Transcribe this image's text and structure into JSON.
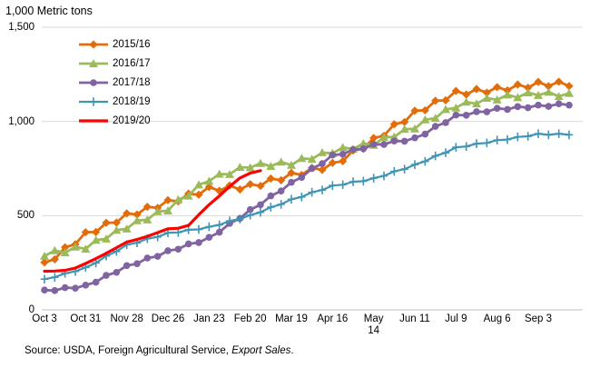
{
  "chart_data": {
    "type": "line",
    "title": "1,000 Metric tons",
    "xlabel": "",
    "ylabel": "1,000 Metric tons",
    "ylim": [
      0,
      1500
    ],
    "grid": "horizontal-only",
    "legend_position": "top-left-inside",
    "y_ticks": [
      {
        "label": "0",
        "value": 0
      },
      {
        "label": "500",
        "value": 500
      },
      {
        "label": "1,000",
        "value": 1000
      },
      {
        "label": "1,500",
        "value": 1500
      }
    ],
    "x_ticks": [
      {
        "week": 0,
        "lines": [
          "Oct 3"
        ]
      },
      {
        "week": 4,
        "lines": [
          "Oct 31"
        ]
      },
      {
        "week": 8,
        "lines": [
          "Nov 28"
        ]
      },
      {
        "week": 12,
        "lines": [
          "Dec 26"
        ]
      },
      {
        "week": 16,
        "lines": [
          "Jan 23"
        ]
      },
      {
        "week": 20,
        "lines": [
          "Feb 20"
        ]
      },
      {
        "week": 24,
        "lines": [
          "Mar 19"
        ]
      },
      {
        "week": 28,
        "lines": [
          "Apr 16"
        ]
      },
      {
        "week": 32,
        "lines": [
          "May",
          "14"
        ]
      },
      {
        "week": 36,
        "lines": [
          "Jun 11"
        ]
      },
      {
        "week": 40,
        "lines": [
          "Jul 9"
        ]
      },
      {
        "week": 44,
        "lines": [
          "Aug 6"
        ]
      },
      {
        "week": 48,
        "lines": [
          "Sep 3"
        ]
      }
    ],
    "weeks_total": 52,
    "series": [
      {
        "name": "2015/16",
        "color": "#E36C0A",
        "marker": "diamond",
        "values": [
          252,
          268,
          332,
          348,
          412,
          413,
          462,
          463,
          512,
          506,
          547,
          541,
          582,
          576,
          617,
          611,
          652,
          632,
          660,
          639,
          667,
          658,
          697,
          688,
          727,
          716,
          754,
          743,
          780,
          789,
          846,
          855,
          912,
          924,
          985,
          997,
          1057,
          1059,
          1110,
          1112,
          1162,
          1143,
          1172,
          1153,
          1182,
          1165,
          1196,
          1179,
          1210,
          1187,
          1211,
          1188
        ]
      },
      {
        "name": "2016/17",
        "color": "#9BBB59",
        "marker": "triangle",
        "values": [
          285,
          315,
          304,
          334,
          323,
          370,
          377,
          423,
          430,
          474,
          478,
          522,
          526,
          585,
          605,
          664,
          683,
          721,
          719,
          757,
          755,
          778,
          762,
          785,
          768,
          804,
          800,
          835,
          831,
          862,
          853,
          883,
          874,
          916,
          918,
          959,
          961,
          1009,
          1017,
          1064,
          1072,
          1103,
          1094,
          1124,
          1115,
          1141,
          1127,
          1153,
          1139,
          1156,
          1133,
          1150
        ]
      },
      {
        "name": "2017/18",
        "color": "#8064A2",
        "marker": "circle",
        "values": [
          105,
          102,
          118,
          115,
          131,
          147,
          183,
          199,
          235,
          245,
          275,
          284,
          314,
          322,
          350,
          357,
          385,
          412,
          459,
          485,
          532,
          558,
          605,
          631,
          677,
          703,
          750,
          776,
          822,
          826,
          851,
          855,
          879,
          878,
          896,
          895,
          913,
          933,
          974,
          994,
          1034,
          1033,
          1052,
          1051,
          1070,
          1064,
          1079,
          1073,
          1087,
          1080,
          1094,
          1087
        ]
      },
      {
        "name": "2018/19",
        "color": "#3E95B5",
        "marker": "plus",
        "values": [
          163,
          173,
          194,
          204,
          225,
          249,
          286,
          310,
          346,
          356,
          378,
          387,
          409,
          411,
          425,
          427,
          441,
          451,
          472,
          482,
          503,
          518,
          545,
          560,
          587,
          599,
          624,
          636,
          660,
          664,
          680,
          683,
          699,
          711,
          735,
          747,
          771,
          788,
          817,
          834,
          863,
          867,
          882,
          886,
          901,
          904,
          918,
          921,
          935,
          929,
          935,
          929
        ]
      },
      {
        "name": "2019/20",
        "color": "#FF0000",
        "marker": "none",
        "values": [
          205,
          206,
          210,
          222,
          246,
          272,
          300,
          330,
          360,
          374,
          390,
          410,
          430,
          433,
          448,
          505,
          558,
          605,
          655,
          700,
          726,
          739
        ]
      }
    ],
    "source_prefix": "Source: USDA, Foreign Agricultural Service, ",
    "source_italic": "Export Sales",
    "source_suffix": "."
  }
}
